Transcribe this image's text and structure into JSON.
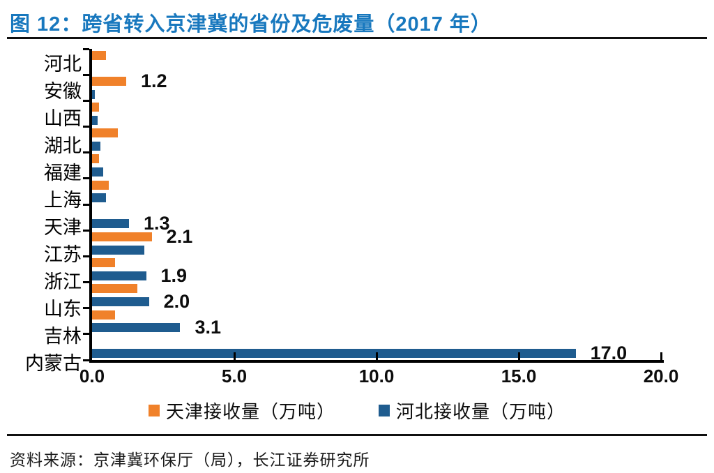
{
  "title": "图 12：跨省转入京津冀的省份及危废量（2017 年）",
  "source": "资料来源：京津冀环保厅（局），长江证券研究所",
  "colors": {
    "title_text": "#1878BE",
    "tianjin_series": "#F0812A",
    "hebei_series": "#1F5C8F",
    "axis": "#000000",
    "rule": "#101010"
  },
  "chart_data": {
    "type": "bar",
    "orientation": "horizontal",
    "title": "图 12：跨省转入京津冀的省份及危废量（2017 年）",
    "xlabel": "",
    "ylabel": "",
    "xlim": [
      0,
      20
    ],
    "grid": false,
    "legend_position": "bottom",
    "categories": [
      "河北",
      "安徽",
      "山西",
      "湖北",
      "福建",
      "上海",
      "天津",
      "江苏",
      "浙江",
      "山东",
      "吉林",
      "内蒙古"
    ],
    "series": [
      {
        "name": "天津接收量（万吨）",
        "color": "#F0812A",
        "values": [
          0.5,
          1.2,
          0.25,
          0.9,
          0.25,
          0.6,
          null,
          2.1,
          0.8,
          1.6,
          0.8,
          null
        ],
        "data_labels": [
          "",
          "1.2",
          "",
          "",
          "",
          "",
          "",
          "2.1",
          "",
          "",
          "",
          ""
        ]
      },
      {
        "name": "河北接收量（万吨）",
        "color": "#1F5C8F",
        "values": [
          null,
          0.1,
          0.2,
          0.3,
          0.4,
          0.5,
          1.3,
          1.85,
          1.9,
          2.0,
          3.1,
          17.0
        ],
        "data_labels": [
          "",
          "",
          "",
          "",
          "",
          "",
          "1.3",
          "",
          "1.9",
          "2.0",
          "3.1",
          "17.0"
        ]
      }
    ],
    "x_ticks": {
      "labels": [
        "0.0",
        "5.0",
        "10.0",
        "15.0",
        "20.0"
      ],
      "values": [
        0,
        5,
        10,
        15,
        20
      ]
    },
    "legend": [
      "天津接收量（万吨）",
      "河北接收量（万吨）"
    ]
  }
}
